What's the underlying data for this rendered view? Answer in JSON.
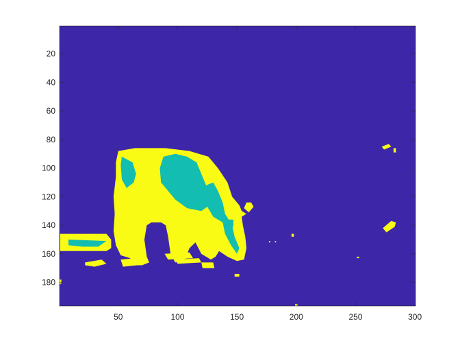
{
  "chart_data": {
    "type": "heatmap",
    "title": "",
    "xlabel": "",
    "ylabel": "",
    "xlim": [
      0.5,
      300.5
    ],
    "ylim": [
      196.5,
      0.5
    ],
    "x_ticks": [
      50,
      100,
      150,
      200,
      250,
      300
    ],
    "y_ticks": [
      20,
      40,
      60,
      80,
      100,
      120,
      140,
      160,
      180
    ],
    "grid": false,
    "colormap": "parula",
    "classes": [
      {
        "value": 1,
        "color": "#3e26a8"
      },
      {
        "value": 2,
        "color": "#13bdb1"
      },
      {
        "value": 3,
        "color": "#f9fb15"
      }
    ],
    "regions": [
      {
        "class": 3,
        "points": [
          [
            50,
            88
          ],
          [
            64,
            86
          ],
          [
            90,
            86
          ],
          [
            110,
            88
          ],
          [
            126,
            92
          ],
          [
            134,
            100
          ],
          [
            142,
            110
          ],
          [
            146,
            120
          ],
          [
            152,
            126
          ],
          [
            154,
            130
          ],
          [
            158,
            132
          ],
          [
            154,
            134
          ],
          [
            155,
            140
          ],
          [
            157,
            148
          ],
          [
            158,
            156
          ],
          [
            156,
            164
          ],
          [
            150,
            165
          ],
          [
            142,
            162
          ],
          [
            135,
            158
          ],
          [
            132,
            162
          ],
          [
            128,
            164
          ],
          [
            120,
            160
          ],
          [
            115,
            152
          ],
          [
            110,
            156
          ],
          [
            106,
            164
          ],
          [
            98,
            166
          ],
          [
            94,
            160
          ],
          [
            92,
            148
          ],
          [
            90,
            140
          ],
          [
            86,
            138
          ],
          [
            78,
            138
          ],
          [
            74,
            140
          ],
          [
            72,
            150
          ],
          [
            74,
            162
          ],
          [
            76,
            166
          ],
          [
            70,
            168
          ],
          [
            64,
            168
          ],
          [
            60,
            163
          ],
          [
            52,
            161
          ],
          [
            48,
            154
          ],
          [
            46,
            144
          ],
          [
            47,
            132
          ],
          [
            46,
            120
          ],
          [
            48,
            106
          ],
          [
            48,
            96
          ]
        ]
      },
      {
        "class": 3,
        "points": [
          [
            156,
            128
          ],
          [
            158,
            124
          ],
          [
            162,
            124
          ],
          [
            164,
            127
          ],
          [
            160,
            131
          ]
        ]
      },
      {
        "class": 3,
        "points": [
          [
            1,
            146
          ],
          [
            40,
            146
          ],
          [
            44,
            150
          ],
          [
            44,
            156
          ],
          [
            40,
            158
          ],
          [
            1,
            158
          ]
        ]
      },
      {
        "class": 3,
        "points": [
          [
            22,
            166
          ],
          [
            36,
            164
          ],
          [
            40,
            167
          ],
          [
            30,
            169
          ],
          [
            22,
            168
          ]
        ]
      },
      {
        "class": 3,
        "points": [
          [
            52,
            164
          ],
          [
            64,
            163
          ],
          [
            66,
            168
          ],
          [
            54,
            169
          ]
        ]
      },
      {
        "class": 3,
        "points": [
          [
            89,
            160
          ],
          [
            110,
            159
          ],
          [
            113,
            163
          ],
          [
            92,
            164
          ]
        ]
      },
      {
        "class": 3,
        "points": [
          [
            98,
            164
          ],
          [
            118,
            163
          ],
          [
            120,
            166
          ],
          [
            100,
            167
          ]
        ]
      },
      {
        "class": 3,
        "points": [
          [
            120,
            166
          ],
          [
            130,
            166
          ],
          [
            131,
            170
          ],
          [
            121,
            170
          ]
        ]
      },
      {
        "class": 3,
        "points": [
          [
            272,
            85
          ],
          [
            278,
            83
          ],
          [
            280,
            85
          ],
          [
            274,
            87
          ]
        ]
      },
      {
        "class": 3,
        "points": [
          [
            282,
            86
          ],
          [
            284,
            86
          ],
          [
            284,
            89
          ],
          [
            282,
            89
          ]
        ]
      },
      {
        "class": 3,
        "points": [
          [
            273,
            142
          ],
          [
            280,
            137
          ],
          [
            284,
            138
          ],
          [
            283,
            141
          ],
          [
            276,
            145
          ]
        ]
      },
      {
        "class": 3,
        "points": [
          [
            148,
            174
          ],
          [
            152,
            174
          ],
          [
            152,
            176
          ],
          [
            148,
            176
          ]
        ]
      },
      {
        "class": 3,
        "points": [
          [
            196,
            146
          ],
          [
            198,
            146
          ],
          [
            198,
            148
          ],
          [
            196,
            148
          ]
        ]
      },
      {
        "class": 3,
        "points": [
          [
            177,
            151
          ],
          [
            178,
            151
          ],
          [
            178,
            152
          ],
          [
            177,
            152
          ]
        ]
      },
      {
        "class": 3,
        "points": [
          [
            182,
            151
          ],
          [
            183,
            151
          ],
          [
            183,
            152
          ],
          [
            182,
            152
          ]
        ]
      },
      {
        "class": 3,
        "points": [
          [
            251,
            162
          ],
          [
            253,
            162
          ],
          [
            253,
            163
          ],
          [
            251,
            163
          ]
        ]
      },
      {
        "class": 3,
        "points": [
          [
            199,
            195
          ],
          [
            201,
            195
          ],
          [
            201,
            196.5
          ],
          [
            199,
            196.5
          ]
        ]
      },
      {
        "class": 3,
        "points": [
          [
            0.5,
            178
          ],
          [
            2,
            178
          ],
          [
            2,
            181
          ],
          [
            0.5,
            181
          ]
        ]
      },
      {
        "class": 2,
        "points": [
          [
            53,
            92
          ],
          [
            62,
            96
          ],
          [
            65,
            104
          ],
          [
            63,
            110
          ],
          [
            57,
            114
          ],
          [
            53,
            108
          ],
          [
            52,
            98
          ]
        ]
      },
      {
        "class": 2,
        "points": [
          [
            88,
            92
          ],
          [
            98,
            90
          ],
          [
            108,
            92
          ],
          [
            116,
            96
          ],
          [
            120,
            104
          ],
          [
            124,
            112
          ],
          [
            130,
            110
          ],
          [
            134,
            116
          ],
          [
            138,
            124
          ],
          [
            140,
            132
          ],
          [
            146,
            140
          ],
          [
            148,
            148
          ],
          [
            152,
            156
          ],
          [
            150,
            160
          ],
          [
            145,
            154
          ],
          [
            140,
            146
          ],
          [
            138,
            138
          ],
          [
            130,
            134
          ],
          [
            125,
            127
          ],
          [
            120,
            130
          ],
          [
            108,
            128
          ],
          [
            98,
            122
          ],
          [
            92,
            116
          ],
          [
            86,
            110
          ],
          [
            85,
            100
          ]
        ]
      },
      {
        "class": 2,
        "points": [
          [
            142,
            136
          ],
          [
            147,
            136
          ],
          [
            147,
            141
          ],
          [
            142,
            141
          ]
        ]
      },
      {
        "class": 2,
        "points": [
          [
            8,
            150
          ],
          [
            40,
            151
          ],
          [
            33,
            155
          ],
          [
            20,
            155
          ],
          [
            8,
            154
          ]
        ]
      },
      {
        "class": 2,
        "points": [
          [
            97,
            118
          ],
          [
            99,
            118
          ],
          [
            99,
            120
          ],
          [
            97,
            120
          ]
        ]
      }
    ]
  }
}
